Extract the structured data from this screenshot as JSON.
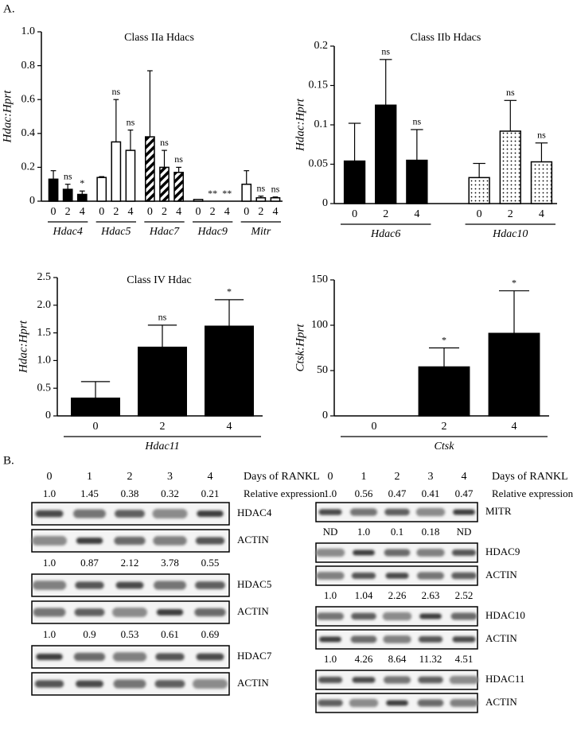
{
  "panel_labels": [
    "A.",
    "B."
  ],
  "chart_data": [
    {
      "type": "bar",
      "title": "Class IIa Hdacs",
      "ylabel": "Hdac:Hprt",
      "categories": [
        "0",
        "2",
        "4"
      ],
      "ylim": [
        0,
        1
      ],
      "yticks": [
        0,
        0.2,
        0.4,
        0.6,
        0.8,
        {
          "value": 1,
          "label": "1.0"
        }
      ],
      "series": [
        {
          "name": "Hdac4",
          "color": "#000000",
          "pattern": "solid",
          "values": [
            0.13,
            0.07,
            0.04
          ],
          "errors": [
            0.05,
            0.03,
            0.02
          ],
          "annotations": [
            null,
            "ns",
            "*"
          ]
        },
        {
          "name": "Hdac5",
          "color": "#000000",
          "pattern": "open",
          "values": [
            0.14,
            0.35,
            0.3
          ],
          "errors": [
            0.005,
            0.25,
            0.12
          ],
          "annotations": [
            null,
            "ns",
            "ns"
          ]
        },
        {
          "name": "Hdac7",
          "color": "#000000",
          "pattern": "hatch",
          "values": [
            0.38,
            0.2,
            0.17
          ],
          "errors": [
            0.39,
            0.1,
            0.03
          ],
          "annotations": [
            null,
            "ns",
            "ns"
          ]
        },
        {
          "name": "Hdac9",
          "color": "#000000",
          "pattern": "open",
          "values": [
            0.01,
            0,
            0
          ],
          "errors": [
            0,
            0,
            0
          ],
          "annotations": [
            null,
            "**",
            "**"
          ]
        },
        {
          "name": "Mitr",
          "color": "#000000",
          "pattern": "open",
          "values": [
            0.1,
            0.02,
            0.02
          ],
          "errors": [
            0.08,
            0.01,
            0.005
          ],
          "annotations": [
            null,
            "ns",
            "ns"
          ]
        }
      ]
    },
    {
      "type": "bar",
      "title": "Class IIb Hdacs",
      "ylabel": "Hdac:Hprt",
      "categories": [
        "0",
        "2",
        "4"
      ],
      "ylim": [
        0,
        0.2
      ],
      "yticks": [
        0,
        0.05,
        0.1,
        0.15,
        0.2
      ],
      "series": [
        {
          "name": "Hdac6",
          "color": "#000000",
          "pattern": "solid",
          "values": [
            0.054,
            0.125,
            0.055
          ],
          "errors": [
            0.048,
            0.058,
            0.039
          ],
          "annotations": [
            null,
            "ns",
            "ns"
          ]
        },
        {
          "name": "Hdac10",
          "color": "#000000",
          "pattern": "dots",
          "values": [
            0.033,
            0.092,
            0.053
          ],
          "errors": [
            0.018,
            0.039,
            0.024
          ],
          "annotations": [
            null,
            "ns",
            "ns"
          ]
        }
      ]
    },
    {
      "type": "bar",
      "title": "Class IV Hdac",
      "ylabel": "Hdac:Hprt",
      "categories": [
        "0",
        "2",
        "4"
      ],
      "ylim": [
        0,
        2.5
      ],
      "yticks": [
        0,
        0.5,
        {
          "value": 1,
          "label": "1.0"
        },
        1.5,
        {
          "value": 2,
          "label": "2.0"
        },
        2.5
      ],
      "series": [
        {
          "name": "Hdac11",
          "color": "#000000",
          "pattern": "solid",
          "values": [
            0.32,
            1.24,
            1.62
          ],
          "errors": [
            0.3,
            0.4,
            0.48
          ],
          "annotations": [
            null,
            "ns",
            "*"
          ]
        }
      ]
    },
    {
      "type": "bar",
      "ylabel": "Ctsk:Hprt",
      "categories": [
        "0",
        "2",
        "4"
      ],
      "ylim": [
        0,
        150
      ],
      "yticks": [
        0,
        50,
        100,
        150
      ],
      "series": [
        {
          "name": "Ctsk",
          "color": "#000000",
          "pattern": "solid",
          "values": [
            0,
            54,
            91
          ],
          "errors": [
            0,
            21,
            47
          ],
          "annotations": [
            null,
            "*",
            "*"
          ]
        }
      ]
    }
  ],
  "blot_panels": [
    {
      "lanes": [
        "0",
        "1",
        "2",
        "3",
        "4"
      ],
      "lanes_title": "Days of RANKL",
      "ratio_title": "Relative expression",
      "rows": [
        {
          "relative_expression": [
            "1.0",
            "1.45",
            "0.38",
            "0.32",
            "0.21"
          ],
          "blots": [
            "HDAC4",
            "ACTIN"
          ]
        },
        {
          "relative_expression": [
            "1.0",
            "0.87",
            "2.12",
            "3.78",
            "0.55"
          ],
          "blots": [
            "HDAC5",
            "ACTIN"
          ]
        },
        {
          "relative_expression": [
            "1.0",
            "0.9",
            "0.53",
            "0.61",
            "0.69"
          ],
          "blots": [
            "HDAC7",
            "ACTIN"
          ]
        }
      ]
    },
    {
      "lanes": [
        "0",
        "1",
        "2",
        "3",
        "4"
      ],
      "lanes_title": "Days of RANKL",
      "ratio_title": "Relative expression",
      "rows": [
        {
          "relative_expression": [
            "1.0",
            "0.56",
            "0.47",
            "0.41",
            "0.47"
          ],
          "blots": [
            "MITR"
          ]
        },
        {
          "relative_expression": [
            "ND",
            "1.0",
            "0.1",
            "0.18",
            "ND"
          ],
          "blots": [
            "HDAC9",
            "ACTIN"
          ]
        },
        {
          "relative_expression": [
            "1.0",
            "1.04",
            "2.26",
            "2.63",
            "2.52"
          ],
          "blots": [
            "HDAC10",
            "ACTIN"
          ]
        },
        {
          "relative_expression": [
            "1.0",
            "4.26",
            "8.64",
            "11.32",
            "4.51"
          ],
          "blots": [
            "HDAC11",
            "ACTIN"
          ]
        }
      ]
    }
  ]
}
